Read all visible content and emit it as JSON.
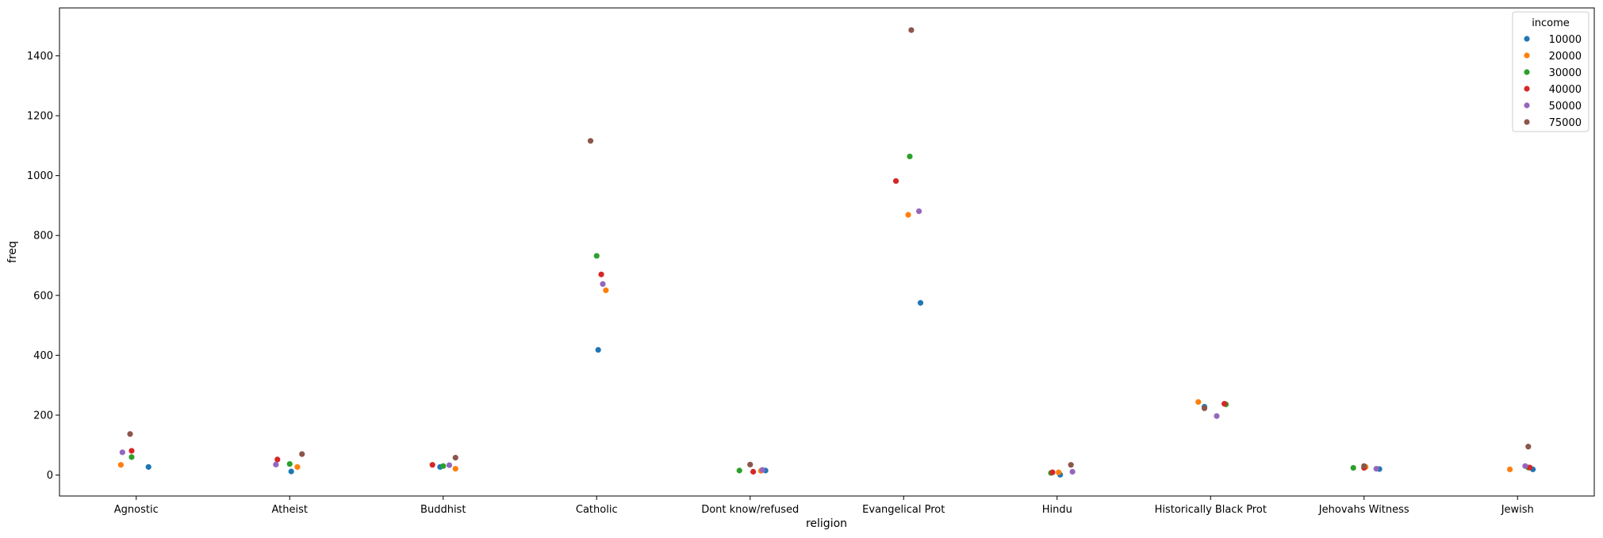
{
  "chart_data": {
    "type": "scatter",
    "title": "",
    "xlabel": "religion",
    "ylabel": "freq",
    "ylim": [
      -70,
      1560
    ],
    "yticks": [
      0,
      200,
      400,
      600,
      800,
      1000,
      1200,
      1400
    ],
    "categories": [
      "Agnostic",
      "Atheist",
      "Buddhist",
      "Catholic",
      "Dont know/refused",
      "Evangelical Prot",
      "Hindu",
      "Historically Black Prot",
      "Jehovahs Witness",
      "Jewish"
    ],
    "legend": {
      "title": "income",
      "placement": "top-right"
    },
    "grid": false,
    "series": [
      {
        "name": "10000",
        "color": "#1f77b4",
        "values": [
          27,
          12,
          27,
          418,
          15,
          575,
          1,
          228,
          20,
          19
        ],
        "jitter": [
          0.08,
          0.01,
          -0.02,
          0.01,
          0.1,
          0.11,
          0.02,
          -0.04,
          0.1,
          0.1
        ]
      },
      {
        "name": "20000",
        "color": "#ff7f0e",
        "values": [
          34,
          27,
          21,
          617,
          14,
          869,
          9,
          244,
          27,
          19
        ],
        "jitter": [
          -0.1,
          0.05,
          0.08,
          0.06,
          0.07,
          0.03,
          0.01,
          -0.08,
          0.01,
          -0.05
        ]
      },
      {
        "name": "30000",
        "color": "#2ca02c",
        "values": [
          60,
          37,
          30,
          732,
          15,
          1064,
          7,
          236,
          24,
          25
        ],
        "jitter": [
          -0.03,
          0.0,
          -0.0,
          0.0,
          -0.07,
          0.04,
          -0.04,
          0.1,
          -0.07,
          0.07
        ]
      },
      {
        "name": "40000",
        "color": "#d62728",
        "values": [
          81,
          52,
          34,
          670,
          11,
          982,
          9,
          238,
          24,
          25
        ],
        "jitter": [
          -0.03,
          -0.08,
          -0.07,
          0.03,
          0.02,
          -0.05,
          -0.03,
          0.09,
          0.0,
          0.08
        ]
      },
      {
        "name": "50000",
        "color": "#9467bd",
        "values": [
          76,
          35,
          33,
          638,
          17,
          881,
          11,
          197,
          21,
          30
        ],
        "jitter": [
          -0.09,
          -0.09,
          0.04,
          0.04,
          0.08,
          0.1,
          0.1,
          0.04,
          0.08,
          0.05
        ]
      },
      {
        "name": "75000",
        "color": "#8c564b",
        "values": [
          137,
          70,
          58,
          1116,
          35,
          1486,
          34,
          223,
          30,
          95
        ],
        "jitter": [
          -0.04,
          0.08,
          0.08,
          -0.04,
          0.0,
          0.05,
          0.09,
          -0.04,
          0.0,
          0.07
        ]
      }
    ]
  }
}
